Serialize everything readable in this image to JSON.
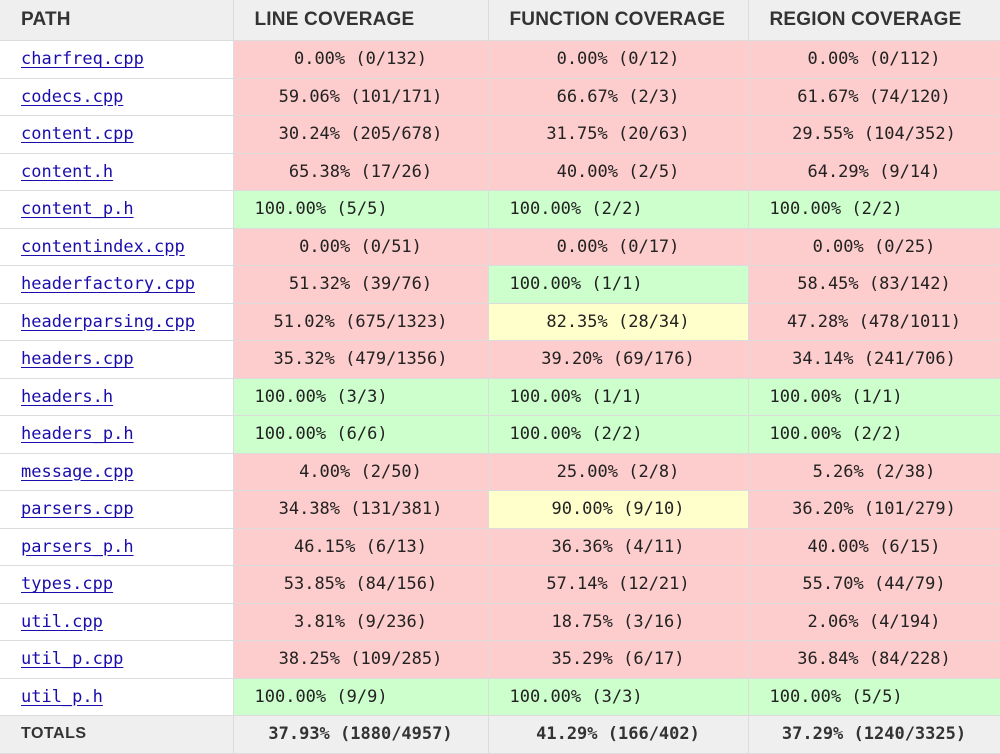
{
  "headers": {
    "path": "PATH",
    "line": "LINE COVERAGE",
    "function": "FUNCTION COVERAGE",
    "region": "REGION COVERAGE"
  },
  "colors": {
    "low": "#fdcccc",
    "medium": "#ffffcc",
    "high": "#ccffcc",
    "link": "#1a0dab",
    "header_bg": "#efefef"
  },
  "rows": [
    {
      "path": "charfreq.cpp",
      "line": "0.00% (0/132)",
      "line_status": "low",
      "function": "0.00% (0/12)",
      "function_status": "low",
      "region": "0.00% (0/112)",
      "region_status": "low"
    },
    {
      "path": "codecs.cpp",
      "line": "59.06% (101/171)",
      "line_status": "low",
      "function": "66.67% (2/3)",
      "function_status": "low",
      "region": "61.67% (74/120)",
      "region_status": "low"
    },
    {
      "path": "content.cpp",
      "line": "30.24% (205/678)",
      "line_status": "low",
      "function": "31.75% (20/63)",
      "function_status": "low",
      "region": "29.55% (104/352)",
      "region_status": "low"
    },
    {
      "path": "content.h",
      "line": "65.38% (17/26)",
      "line_status": "low",
      "function": "40.00% (2/5)",
      "function_status": "low",
      "region": "64.29% (9/14)",
      "region_status": "low"
    },
    {
      "path": "content_p.h",
      "line": "100.00% (5/5)",
      "line_status": "high",
      "function": "100.00% (2/2)",
      "function_status": "high",
      "region": "100.00% (2/2)",
      "region_status": "high"
    },
    {
      "path": "contentindex.cpp",
      "line": "0.00% (0/51)",
      "line_status": "low",
      "function": "0.00% (0/17)",
      "function_status": "low",
      "region": "0.00% (0/25)",
      "region_status": "low"
    },
    {
      "path": "headerfactory.cpp",
      "line": "51.32% (39/76)",
      "line_status": "low",
      "function": "100.00% (1/1)",
      "function_status": "high",
      "region": "58.45% (83/142)",
      "region_status": "low"
    },
    {
      "path": "headerparsing.cpp",
      "line": "51.02% (675/1323)",
      "line_status": "low",
      "function": "82.35% (28/34)",
      "function_status": "medium",
      "region": "47.28% (478/1011)",
      "region_status": "low"
    },
    {
      "path": "headers.cpp",
      "line": "35.32% (479/1356)",
      "line_status": "low",
      "function": "39.20% (69/176)",
      "function_status": "low",
      "region": "34.14% (241/706)",
      "region_status": "low"
    },
    {
      "path": "headers.h",
      "line": "100.00% (3/3)",
      "line_status": "high",
      "function": "100.00% (1/1)",
      "function_status": "high",
      "region": "100.00% (1/1)",
      "region_status": "high"
    },
    {
      "path": "headers_p.h",
      "line": "100.00% (6/6)",
      "line_status": "high",
      "function": "100.00% (2/2)",
      "function_status": "high",
      "region": "100.00% (2/2)",
      "region_status": "high"
    },
    {
      "path": "message.cpp",
      "line": "4.00% (2/50)",
      "line_status": "low",
      "function": "25.00% (2/8)",
      "function_status": "low",
      "region": "5.26% (2/38)",
      "region_status": "low"
    },
    {
      "path": "parsers.cpp",
      "line": "34.38% (131/381)",
      "line_status": "low",
      "function": "90.00% (9/10)",
      "function_status": "medium",
      "region": "36.20% (101/279)",
      "region_status": "low"
    },
    {
      "path": "parsers_p.h",
      "line": "46.15% (6/13)",
      "line_status": "low",
      "function": "36.36% (4/11)",
      "function_status": "low",
      "region": "40.00% (6/15)",
      "region_status": "low"
    },
    {
      "path": "types.cpp",
      "line": "53.85% (84/156)",
      "line_status": "low",
      "function": "57.14% (12/21)",
      "function_status": "low",
      "region": "55.70% (44/79)",
      "region_status": "low"
    },
    {
      "path": "util.cpp",
      "line": "3.81% (9/236)",
      "line_status": "low",
      "function": "18.75% (3/16)",
      "function_status": "low",
      "region": "2.06% (4/194)",
      "region_status": "low"
    },
    {
      "path": "util_p.cpp",
      "line": "38.25% (109/285)",
      "line_status": "low",
      "function": "35.29% (6/17)",
      "function_status": "low",
      "region": "36.84% (84/228)",
      "region_status": "low"
    },
    {
      "path": "util_p.h",
      "line": "100.00% (9/9)",
      "line_status": "high",
      "function": "100.00% (3/3)",
      "function_status": "high",
      "region": "100.00% (5/5)",
      "region_status": "high"
    }
  ],
  "totals": {
    "label": "TOTALS",
    "line": "37.93% (1880/4957)",
    "function": "41.29% (166/402)",
    "region": "37.29% (1240/3325)"
  }
}
